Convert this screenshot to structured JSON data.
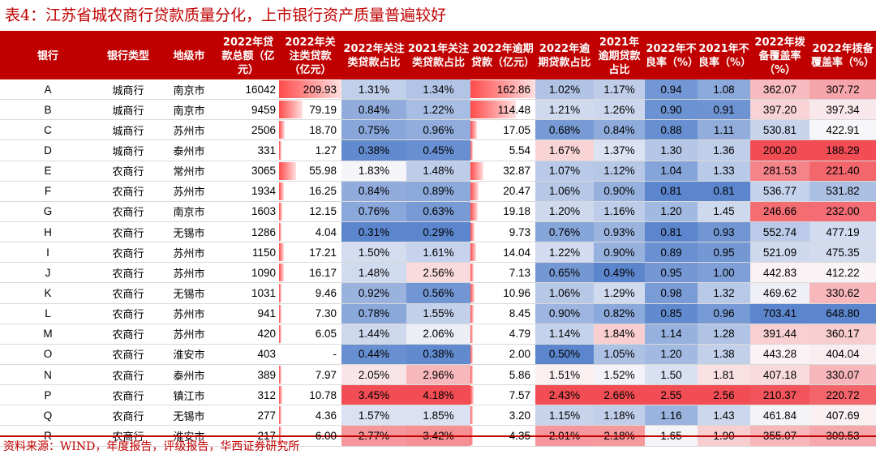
{
  "title": "表4：江苏省城农商行贷款质量分化，上市银行资产质量普遍较好",
  "source": "资料来源：WIND，年度报告，评级报告，华西证券研究所",
  "columns": [
    "银行",
    "银行类型",
    "地级市",
    "2022年贷款总额（亿元）",
    "2022年关注类贷款（亿元）",
    "2022年关注类贷款占比",
    "2021年关注类贷款占比",
    "2022年逾期贷款（亿元）",
    "2022年逾期贷款占比",
    "2021年逾期贷款占比",
    "2022年不良率（%）",
    "2021年不良率（%）",
    "2022年拨备覆盖率（%）",
    "2022年拨备覆盖率（%）"
  ],
  "rows": [
    [
      "A",
      "城商行",
      "南京市",
      "16042",
      "209.93",
      "1.31%",
      "1.34%",
      "162.86",
      "1.02%",
      "1.17%",
      "0.94",
      "1.08",
      "362.07",
      "307.72"
    ],
    [
      "B",
      "城商行",
      "南京市",
      "9459",
      "79.19",
      "0.84%",
      "1.22%",
      "114.48",
      "1.21%",
      "1.26%",
      "0.90",
      "0.91",
      "397.20",
      "397.34"
    ],
    [
      "C",
      "城商行",
      "苏州市",
      "2506",
      "18.70",
      "0.75%",
      "0.96%",
      "17.05",
      "0.68%",
      "0.84%",
      "0.88",
      "1.11",
      "530.81",
      "422.91"
    ],
    [
      "D",
      "城商行",
      "泰州市",
      "331",
      "1.27",
      "0.38%",
      "0.45%",
      "5.54",
      "1.67%",
      "1.37%",
      "1.30",
      "1.36",
      "200.20",
      "188.29"
    ],
    [
      "E",
      "农商行",
      "常州市",
      "3065",
      "55.98",
      "1.83%",
      "1.48%",
      "32.87",
      "1.07%",
      "1.12%",
      "1.04",
      "1.33",
      "281.53",
      "221.40"
    ],
    [
      "F",
      "农商行",
      "苏州市",
      "1934",
      "16.25",
      "0.84%",
      "0.89%",
      "20.47",
      "1.06%",
      "0.90%",
      "0.81",
      "0.81",
      "536.77",
      "531.82"
    ],
    [
      "G",
      "农商行",
      "南京市",
      "1603",
      "12.15",
      "0.76%",
      "0.63%",
      "19.18",
      "1.20%",
      "1.16%",
      "1.20",
      "1.45",
      "246.66",
      "232.00"
    ],
    [
      "H",
      "农商行",
      "无锡市",
      "1286",
      "4.04",
      "0.31%",
      "0.29%",
      "9.73",
      "0.76%",
      "0.93%",
      "0.81",
      "0.93",
      "552.74",
      "477.19"
    ],
    [
      "I",
      "农商行",
      "苏州市",
      "1150",
      "17.21",
      "1.50%",
      "1.61%",
      "14.04",
      "1.22%",
      "0.90%",
      "0.89",
      "0.95",
      "521.09",
      "475.35"
    ],
    [
      "J",
      "农商行",
      "苏州市",
      "1090",
      "16.17",
      "1.48%",
      "2.56%",
      "7.13",
      "0.65%",
      "0.49%",
      "0.95",
      "1.00",
      "442.83",
      "412.22"
    ],
    [
      "K",
      "农商行",
      "无锡市",
      "1031",
      "9.46",
      "0.92%",
      "0.56%",
      "10.96",
      "1.06%",
      "1.29%",
      "0.98",
      "1.32",
      "469.62",
      "330.62"
    ],
    [
      "L",
      "农商行",
      "苏州市",
      "941",
      "7.30",
      "0.78%",
      "1.55%",
      "8.45",
      "0.90%",
      "0.82%",
      "0.85",
      "0.96",
      "703.41",
      "648.80"
    ],
    [
      "M",
      "农商行",
      "苏州市",
      "420",
      "6.05",
      "1.44%",
      "2.06%",
      "4.79",
      "1.14%",
      "1.84%",
      "1.14",
      "1.28",
      "391.44",
      "360.17"
    ],
    [
      "O",
      "农商行",
      "淮安市",
      "403",
      "-",
      "0.44%",
      "0.38%",
      "2.00",
      "0.50%",
      "1.05%",
      "1.20",
      "1.38",
      "443.28",
      "404.04"
    ],
    [
      "N",
      "农商行",
      "泰州市",
      "389",
      "7.97",
      "2.05%",
      "2.96%",
      "5.86",
      "1.51%",
      "1.52%",
      "1.50",
      "1.81",
      "407.18",
      "330.07"
    ],
    [
      "P",
      "农商行",
      "镇江市",
      "312",
      "10.78",
      "3.45%",
      "4.18%",
      "7.57",
      "2.43%",
      "2.66%",
      "2.55",
      "2.56",
      "210.37",
      "220.72"
    ],
    [
      "Q",
      "农商行",
      "无锡市",
      "277",
      "4.36",
      "1.57%",
      "1.85%",
      "3.20",
      "1.15%",
      "1.18%",
      "1.16",
      "1.43",
      "461.84",
      "407.69"
    ],
    [
      "R",
      "农商行",
      "淮安市",
      "217",
      "6.00",
      "2.77%",
      "3.42%",
      "4.35",
      "2.01%",
      "2.18%",
      "1.65",
      "1.90",
      "355.07",
      "309.53"
    ]
  ]
}
